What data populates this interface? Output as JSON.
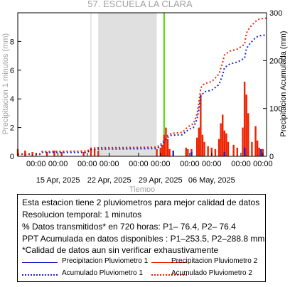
{
  "chart_data": {
    "type": "bar",
    "title": "57. ESCUELA LA CLARA",
    "xlabel": "Tiempo",
    "ylabel_left": "Precipitacion 1 minutos (mm)",
    "ylabel_right": "Precipitacion Acumulada (mm)",
    "x_range": [
      "2025-04-09 12:00",
      "2025-05-13 12:00"
    ],
    "y_left_range": [
      0,
      10
    ],
    "y_right_range": [
      0,
      300
    ],
    "y_left_ticks": [
      0,
      2,
      4,
      6,
      8
    ],
    "y_right_ticks": [
      0,
      100,
      200,
      300
    ],
    "x_tick_labels": [
      "00:00",
      "00:00",
      "00:00",
      "00:00",
      "00:00",
      "00:00",
      "00:00",
      "00:00",
      "00:00",
      "00:00"
    ],
    "x_tick_times": [
      "2025-04-12",
      "2025-04-15",
      "2025-04-19",
      "2025-04-22",
      "2025-04-26",
      "2025-04-29",
      "2025-05-03",
      "2025-05-06",
      "2025-05-10",
      "2025-05-13"
    ],
    "x_date_labels": [
      "15 Apr, 2025",
      "22 Apr, 2025",
      "29 Apr, 2025",
      "06 May, 2025"
    ],
    "x_date_times": [
      "2025-04-15",
      "2025-04-22",
      "2025-04-29",
      "2025-05-06"
    ],
    "gap_region": {
      "start": "2025-04-20 12:00",
      "end": "2025-04-28 12:00",
      "color": "#e0e0e0"
    },
    "markers": [
      {
        "time": "2025-04-19 12:00",
        "color": "#cfcfcf"
      },
      {
        "time": "2025-04-29 12:00",
        "color": "#44dd00"
      }
    ],
    "series": [
      {
        "name": "Precipitacion Pluviometro 1",
        "kind": "bars",
        "axis": "left",
        "color": "#1f1fcc",
        "points": [
          [
            "2025-04-30 18:00",
            0.4
          ],
          [
            "2025-05-03 06:00",
            0.3
          ],
          [
            "2025-05-07 18:00",
            0.3
          ],
          [
            "2025-05-10 12:00",
            0.6
          ],
          [
            "2025-05-12 18:00",
            0.5
          ]
        ]
      },
      {
        "name": "Precipitacion Pluviometro 2",
        "kind": "bars",
        "axis": "left",
        "color": "#ee2200",
        "points": [
          [
            "2025-04-09 12:00",
            0.5
          ],
          [
            "2025-04-10 12:00",
            0.4
          ],
          [
            "2025-04-11 12:00",
            0.3
          ],
          [
            "2025-04-13 12:00",
            0.3
          ],
          [
            "2025-04-14 12:00",
            0.4
          ],
          [
            "2025-04-15 12:00",
            0.3
          ],
          [
            "2025-04-18 12:00",
            0.3
          ],
          [
            "2025-04-19 12:00",
            0.6
          ],
          [
            "2025-04-20 00:00",
            0.5
          ],
          [
            "2025-04-20 12:00",
            0.4
          ],
          [
            "2025-04-28 12:00",
            0.5
          ],
          [
            "2025-04-29 00:00",
            0.6
          ],
          [
            "2025-04-29 06:00",
            0.8
          ],
          [
            "2025-04-29 12:00",
            1.5
          ],
          [
            "2025-04-29 18:00",
            2.0
          ],
          [
            "2025-04-30 00:00",
            1.2
          ],
          [
            "2025-04-30 06:00",
            0.5
          ],
          [
            "2025-05-02 12:00",
            0.6
          ],
          [
            "2025-05-02 18:00",
            0.5
          ],
          [
            "2025-05-03 06:00",
            0.5
          ],
          [
            "2025-05-04 00:00",
            1.3
          ],
          [
            "2025-05-04 06:00",
            2.0
          ],
          [
            "2025-05-04 12:00",
            4.3
          ],
          [
            "2025-05-04 18:00",
            1.5
          ],
          [
            "2025-05-05 00:00",
            1.0
          ],
          [
            "2025-05-05 12:00",
            0.7
          ],
          [
            "2025-05-06 00:00",
            0.6
          ],
          [
            "2025-05-06 12:00",
            0.5
          ],
          [
            "2025-05-07 00:00",
            1.2
          ],
          [
            "2025-05-07 06:00",
            2.3
          ],
          [
            "2025-05-07 12:00",
            2.9
          ],
          [
            "2025-05-07 18:00",
            1.8
          ],
          [
            "2025-05-08 00:00",
            1.6
          ],
          [
            "2025-05-08 06:00",
            1.0
          ],
          [
            "2025-05-09 00:00",
            0.8
          ],
          [
            "2025-05-09 12:00",
            0.6
          ],
          [
            "2025-05-10 06:00",
            2.0
          ],
          [
            "2025-05-10 12:00",
            5.2
          ],
          [
            "2025-05-10 18:00",
            4.3
          ],
          [
            "2025-05-11 00:00",
            3.0
          ],
          [
            "2025-05-11 12:00",
            1.0
          ],
          [
            "2025-05-12 00:00",
            2.1
          ],
          [
            "2025-05-12 06:00",
            1.1
          ],
          [
            "2025-05-12 12:00",
            0.6
          ],
          [
            "2025-05-13 00:00",
            0.5
          ]
        ]
      },
      {
        "name": "Acumulado Pluviometro 1",
        "kind": "line",
        "axis": "right",
        "color": "#1f1fcc",
        "points": [
          [
            "2025-04-09 12:00",
            4
          ],
          [
            "2025-04-12 12:00",
            4
          ],
          [
            "2025-04-12 18:00",
            8
          ],
          [
            "2025-04-19 00:00",
            8
          ],
          [
            "2025-04-19 12:00",
            14
          ],
          [
            "2025-04-20 12:00",
            15
          ],
          [
            "2025-04-28 12:00",
            16
          ],
          [
            "2025-04-29 06:00",
            25
          ],
          [
            "2025-04-30 00:00",
            40
          ],
          [
            "2025-04-30 12:00",
            44
          ],
          [
            "2025-05-02 00:00",
            45
          ],
          [
            "2025-05-02 12:00",
            52
          ],
          [
            "2025-05-03 00:00",
            57
          ],
          [
            "2025-05-03 12:00",
            60
          ],
          [
            "2025-05-04 00:00",
            78
          ],
          [
            "2025-05-04 06:00",
            98
          ],
          [
            "2025-05-04 12:00",
            125
          ],
          [
            "2025-05-05 00:00",
            135
          ],
          [
            "2025-05-06 00:00",
            138
          ],
          [
            "2025-05-07 00:00",
            150
          ],
          [
            "2025-05-07 12:00",
            170
          ],
          [
            "2025-05-07 18:00",
            185
          ],
          [
            "2025-05-08 12:00",
            193
          ],
          [
            "2025-05-09 12:00",
            197
          ],
          [
            "2025-05-10 12:00",
            205
          ],
          [
            "2025-05-10 18:00",
            225
          ],
          [
            "2025-05-11 06:00",
            236
          ],
          [
            "2025-05-12 00:00",
            248
          ],
          [
            "2025-05-12 12:00",
            252
          ],
          [
            "2025-05-13 12:00",
            253.5
          ]
        ]
      },
      {
        "name": "Acumulado Pluviometro 2",
        "kind": "line",
        "axis": "right",
        "color": "#ee2200",
        "points": [
          [
            "2025-04-09 12:00",
            5
          ],
          [
            "2025-04-12 12:00",
            5
          ],
          [
            "2025-04-12 18:00",
            10
          ],
          [
            "2025-04-19 00:00",
            11
          ],
          [
            "2025-04-19 12:00",
            17
          ],
          [
            "2025-04-20 12:00",
            18
          ],
          [
            "2025-04-28 12:00",
            19
          ],
          [
            "2025-04-29 06:00",
            28
          ],
          [
            "2025-04-30 00:00",
            44
          ],
          [
            "2025-04-30 12:00",
            48
          ],
          [
            "2025-05-02 00:00",
            50
          ],
          [
            "2025-05-02 12:00",
            58
          ],
          [
            "2025-05-03 00:00",
            64
          ],
          [
            "2025-05-03 12:00",
            68
          ],
          [
            "2025-05-04 00:00",
            88
          ],
          [
            "2025-05-04 06:00",
            112
          ],
          [
            "2025-05-04 12:00",
            143
          ],
          [
            "2025-05-05 00:00",
            152
          ],
          [
            "2025-05-06 00:00",
            156
          ],
          [
            "2025-05-07 00:00",
            172
          ],
          [
            "2025-05-07 12:00",
            196
          ],
          [
            "2025-05-07 18:00",
            212
          ],
          [
            "2025-05-08 12:00",
            220
          ],
          [
            "2025-05-09 12:00",
            224
          ],
          [
            "2025-05-10 12:00",
            234
          ],
          [
            "2025-05-10 18:00",
            258
          ],
          [
            "2025-05-11 06:00",
            270
          ],
          [
            "2025-05-12 00:00",
            282
          ],
          [
            "2025-05-12 12:00",
            287
          ],
          [
            "2025-05-13 12:00",
            288.8
          ]
        ]
      }
    ]
  },
  "info": {
    "line1": "Esta estacion tiene 2 pluviometros para mejor calidad de datos",
    "line2": "Resolucion temporal: 1 minutos",
    "line3": "% Datos transmitidos* en 720 horas: P1– 76.4, P2– 76.4",
    "line4": "PPT Acumulada en datos disponibles : P1–253.5, P2–288.8 mm",
    "line5": "*Calidad de datos aun sin verificar exhaustivamente"
  },
  "legend": {
    "p1_bars": "Precipitacion Pluviometro 1",
    "p2_bars": "Precipitacion Pluviometro 2",
    "p1_acc": "Acumulado Pluviometro 1",
    "p2_acc": "Acumulado Pluviometro 2"
  },
  "colors": {
    "blue": "#1f1fcc",
    "red": "#ee2200",
    "gap": "#e0e0e0",
    "marker_green": "#44dd00",
    "title_gray": "#a0a0a0"
  }
}
